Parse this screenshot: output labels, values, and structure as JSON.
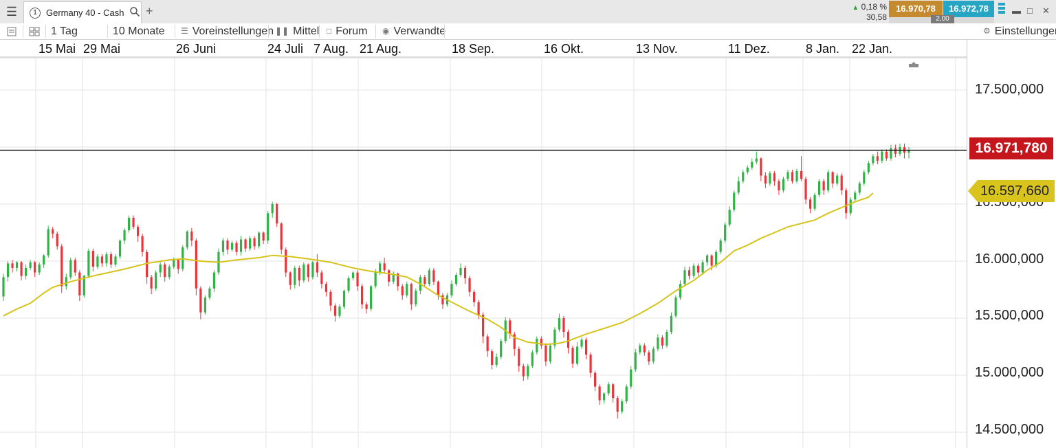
{
  "window": {
    "tab_number": "1",
    "tab_title": "Germany 40 - Cash",
    "add_tab": "+"
  },
  "quote": {
    "change_pct": "0,18 %",
    "change_pts": "30,58",
    "bid": "16.970,78",
    "ask": "16.972,78",
    "spread": "2,00",
    "colors": {
      "bid": "#c68a2e",
      "ask": "#26a6c4",
      "up": "#2e9d3a"
    }
  },
  "toolbar": {
    "interval": "1 Tag",
    "range": "10 Monate",
    "presets": "Voreinstellungen",
    "chart_type": "Mittel",
    "forum": "Forum",
    "related": "Verwandte",
    "settings": "Einstellungen"
  },
  "chart_data": {
    "type": "candlestick",
    "x_tick_labels": [
      "15 Mai",
      "29 Mai",
      "26 Juni",
      "24 Juli",
      "7 Aug.",
      "21 Aug.",
      "18 Sep.",
      "16 Okt.",
      "13 Nov.",
      "11 Dez.",
      "8 Jan.",
      "22 Jan."
    ],
    "y_tick_labels": [
      "17.500,000",
      "16.500,000",
      "16.000,000",
      "15.500,000",
      "15.000,000",
      "14.500,000"
    ],
    "y_ticks": [
      17500,
      16500,
      16000,
      15500,
      15000,
      14500
    ],
    "ylim": [
      14400,
      17850
    ],
    "grid": true,
    "current_price": 16971.78,
    "current_price_label": "16.971,780",
    "moving_average_label": "16.597,660",
    "colors": {
      "up": "#2fb344",
      "down": "#e8343a",
      "moving_average": "#d6c31a",
      "price_line": "#111111",
      "price_tag": "#c4161c",
      "ma_tag": "#d8c41c"
    },
    "moving_average": [
      [
        0,
        15520
      ],
      [
        3,
        15580
      ],
      [
        6,
        15630
      ],
      [
        9,
        15720
      ],
      [
        11,
        15770
      ],
      [
        15,
        15820
      ],
      [
        20,
        15870
      ],
      [
        27,
        15930
      ],
      [
        32,
        15980
      ],
      [
        37,
        16010
      ],
      [
        40,
        16020
      ],
      [
        44,
        16000
      ],
      [
        48,
        15990
      ],
      [
        52,
        16010
      ],
      [
        57,
        16030
      ],
      [
        60,
        16050
      ],
      [
        64,
        16040
      ],
      [
        68,
        16020
      ],
      [
        73,
        15990
      ],
      [
        78,
        15940
      ],
      [
        82,
        15910
      ],
      [
        86,
        15890
      ],
      [
        90,
        15860
      ],
      [
        93,
        15800
      ],
      [
        97,
        15700
      ],
      [
        101,
        15620
      ],
      [
        104,
        15560
      ],
      [
        108,
        15490
      ],
      [
        111,
        15420
      ],
      [
        114,
        15330
      ],
      [
        117,
        15290
      ],
      [
        121,
        15270
      ],
      [
        124,
        15280
      ],
      [
        126,
        15300
      ],
      [
        130,
        15360
      ],
      [
        134,
        15410
      ],
      [
        138,
        15460
      ],
      [
        142,
        15540
      ],
      [
        146,
        15630
      ],
      [
        150,
        15740
      ],
      [
        154,
        15830
      ],
      [
        157,
        15920
      ],
      [
        160,
        15990
      ],
      [
        163,
        16090
      ],
      [
        166,
        16140
      ],
      [
        169,
        16200
      ],
      [
        172,
        16250
      ],
      [
        175,
        16300
      ],
      [
        178,
        16330
      ],
      [
        181,
        16360
      ],
      [
        184,
        16420
      ],
      [
        187,
        16470
      ],
      [
        190,
        16520
      ],
      [
        193,
        16560
      ],
      [
        194,
        16597
      ]
    ],
    "candles": [
      [
        15690,
        15860,
        15650,
        15890
      ],
      [
        15860,
        15980,
        15820,
        16000
      ],
      [
        15980,
        15940,
        15900,
        16010
      ],
      [
        15940,
        15990,
        15910,
        16000
      ],
      [
        15990,
        15870,
        15830,
        16000
      ],
      [
        15870,
        15940,
        15840,
        15970
      ],
      [
        15940,
        15990,
        15920,
        16010
      ],
      [
        15990,
        15900,
        15860,
        16000
      ],
      [
        15900,
        15970,
        15880,
        15990
      ],
      [
        15970,
        16050,
        15940,
        16060
      ],
      [
        16050,
        16280,
        16030,
        16310
      ],
      [
        16280,
        16240,
        16200,
        16300
      ],
      [
        16240,
        16130,
        16100,
        16260
      ],
      [
        16130,
        15780,
        15720,
        16150
      ],
      [
        15780,
        15860,
        15750,
        15890
      ],
      [
        15860,
        16010,
        15840,
        16030
      ],
      [
        16010,
        15900,
        15870,
        16030
      ],
      [
        15900,
        15700,
        15650,
        15920
      ],
      [
        15700,
        15870,
        15680,
        15880
      ],
      [
        15870,
        16090,
        15850,
        16110
      ],
      [
        16090,
        15950,
        15910,
        16110
      ],
      [
        15950,
        16040,
        15930,
        16060
      ],
      [
        16040,
        15980,
        15950,
        16060
      ],
      [
        15980,
        16060,
        15950,
        16080
      ],
      [
        16060,
        15970,
        15940,
        16080
      ],
      [
        15970,
        16040,
        15950,
        16060
      ],
      [
        16040,
        16180,
        16020,
        16190
      ],
      [
        16180,
        16270,
        16150,
        16290
      ],
      [
        16270,
        16380,
        16250,
        16400
      ],
      [
        16380,
        16300,
        16280,
        16400
      ],
      [
        16300,
        16220,
        16170,
        16320
      ],
      [
        16220,
        16080,
        16040,
        16240
      ],
      [
        16080,
        15860,
        15800,
        16100
      ],
      [
        15860,
        15760,
        15710,
        15880
      ],
      [
        15760,
        15900,
        15740,
        15920
      ],
      [
        15900,
        15970,
        15860,
        15990
      ],
      [
        15970,
        15860,
        15820,
        15990
      ],
      [
        15860,
        15950,
        15840,
        15970
      ],
      [
        15950,
        16010,
        15930,
        16030
      ],
      [
        16010,
        15930,
        15890,
        16020
      ],
      [
        15930,
        16120,
        15910,
        16140
      ],
      [
        16120,
        16260,
        16100,
        16270
      ],
      [
        16260,
        16180,
        16130,
        16290
      ],
      [
        16180,
        15760,
        15700,
        16200
      ],
      [
        15760,
        15550,
        15490,
        15780
      ],
      [
        15550,
        15680,
        15530,
        15700
      ],
      [
        15680,
        15760,
        15660,
        15780
      ],
      [
        15760,
        15900,
        15730,
        15920
      ],
      [
        15900,
        16080,
        15880,
        16110
      ],
      [
        16080,
        16180,
        16050,
        16200
      ],
      [
        16180,
        16100,
        16060,
        16200
      ],
      [
        16100,
        16160,
        16080,
        16180
      ],
      [
        16160,
        16080,
        16050,
        16180
      ],
      [
        16080,
        16190,
        16050,
        16220
      ],
      [
        16190,
        16110,
        16080,
        16200
      ],
      [
        16110,
        16200,
        16090,
        16220
      ],
      [
        16200,
        16130,
        16100,
        16220
      ],
      [
        16130,
        16250,
        16110,
        16260
      ],
      [
        16250,
        16180,
        16150,
        16260
      ],
      [
        16180,
        16420,
        16150,
        16440
      ],
      [
        16420,
        16500,
        16380,
        16520
      ],
      [
        16500,
        16330,
        16300,
        16510
      ],
      [
        16330,
        16100,
        16060,
        16340
      ],
      [
        16100,
        15900,
        15860,
        16120
      ],
      [
        15900,
        15790,
        15750,
        15910
      ],
      [
        15790,
        15940,
        15760,
        15960
      ],
      [
        15940,
        15830,
        15780,
        15960
      ],
      [
        15830,
        15970,
        15810,
        15990
      ],
      [
        15970,
        15860,
        15820,
        15980
      ],
      [
        15860,
        15990,
        15840,
        16000
      ],
      [
        15990,
        15900,
        15860,
        16060
      ],
      [
        15900,
        15800,
        15760,
        15920
      ],
      [
        15800,
        15730,
        15690,
        15820
      ],
      [
        15730,
        15610,
        15560,
        15750
      ],
      [
        15610,
        15520,
        15470,
        15630
      ],
      [
        15520,
        15600,
        15500,
        15620
      ],
      [
        15600,
        15740,
        15580,
        15750
      ],
      [
        15740,
        15850,
        15720,
        15870
      ],
      [
        15850,
        15900,
        15830,
        15910
      ],
      [
        15900,
        15780,
        15740,
        15920
      ],
      [
        15780,
        15620,
        15580,
        15800
      ],
      [
        15620,
        15580,
        15540,
        15640
      ],
      [
        15580,
        15780,
        15560,
        15790
      ],
      [
        15780,
        15900,
        15760,
        15930
      ],
      [
        15900,
        15980,
        15880,
        16000
      ],
      [
        15980,
        15920,
        15890,
        16030
      ],
      [
        15920,
        15820,
        15780,
        15930
      ],
      [
        15820,
        15890,
        15800,
        15910
      ],
      [
        15890,
        15780,
        15740,
        15900
      ],
      [
        15780,
        15700,
        15660,
        15800
      ],
      [
        15700,
        15800,
        15680,
        15820
      ],
      [
        15800,
        15620,
        15570,
        15810
      ],
      [
        15620,
        15740,
        15600,
        15760
      ],
      [
        15740,
        15860,
        15710,
        15880
      ],
      [
        15860,
        15800,
        15770,
        15880
      ],
      [
        15800,
        15920,
        15780,
        15940
      ],
      [
        15920,
        15820,
        15790,
        15940
      ],
      [
        15820,
        15700,
        15660,
        15830
      ],
      [
        15700,
        15620,
        15580,
        15720
      ],
      [
        15620,
        15700,
        15600,
        15720
      ],
      [
        15700,
        15800,
        15680,
        15830
      ],
      [
        15800,
        15880,
        15780,
        15900
      ],
      [
        15880,
        15940,
        15860,
        15980
      ],
      [
        15940,
        15850,
        15800,
        15960
      ],
      [
        15850,
        15730,
        15690,
        15870
      ],
      [
        15730,
        15640,
        15600,
        15750
      ],
      [
        15640,
        15530,
        15490,
        15660
      ],
      [
        15530,
        15340,
        15280,
        15550
      ],
      [
        15340,
        15210,
        15160,
        15360
      ],
      [
        15210,
        15090,
        15050,
        15230
      ],
      [
        15090,
        15160,
        15070,
        15190
      ],
      [
        15160,
        15300,
        15140,
        15320
      ],
      [
        15300,
        15480,
        15280,
        15510
      ],
      [
        15480,
        15360,
        15320,
        15500
      ],
      [
        15360,
        15230,
        15170,
        15380
      ],
      [
        15230,
        15080,
        15030,
        15250
      ],
      [
        15080,
        14990,
        14950,
        15100
      ],
      [
        14990,
        15080,
        14960,
        15100
      ],
      [
        15080,
        15200,
        15060,
        15220
      ],
      [
        15200,
        15320,
        15180,
        15340
      ],
      [
        15320,
        15260,
        15230,
        15340
      ],
      [
        15260,
        15120,
        15080,
        15280
      ],
      [
        15120,
        15260,
        15100,
        15280
      ],
      [
        15260,
        15400,
        15230,
        15420
      ],
      [
        15400,
        15500,
        15380,
        15540
      ],
      [
        15500,
        15380,
        15330,
        15520
      ],
      [
        15380,
        15240,
        15190,
        15400
      ],
      [
        15240,
        15100,
        15060,
        15260
      ],
      [
        15100,
        15250,
        15080,
        15290
      ],
      [
        15250,
        15310,
        15230,
        15330
      ],
      [
        15310,
        15180,
        15140,
        15330
      ],
      [
        15180,
        15020,
        14980,
        15200
      ],
      [
        15020,
        14900,
        14860,
        15040
      ],
      [
        14900,
        14780,
        14740,
        14920
      ],
      [
        14780,
        14840,
        14750,
        14850
      ],
      [
        14840,
        14920,
        14820,
        14940
      ],
      [
        14920,
        14800,
        14760,
        14930
      ],
      [
        14800,
        14680,
        14620,
        14820
      ],
      [
        14680,
        14770,
        14660,
        14790
      ],
      [
        14770,
        14900,
        14750,
        14920
      ],
      [
        14900,
        15050,
        14880,
        15080
      ],
      [
        15050,
        15200,
        15030,
        15230
      ],
      [
        15200,
        15260,
        15180,
        15280
      ],
      [
        15260,
        15200,
        15170,
        15280
      ],
      [
        15200,
        15120,
        15090,
        15220
      ],
      [
        15120,
        15230,
        15100,
        15250
      ],
      [
        15230,
        15330,
        15210,
        15360
      ],
      [
        15330,
        15260,
        15230,
        15350
      ],
      [
        15260,
        15380,
        15240,
        15400
      ],
      [
        15380,
        15520,
        15360,
        15550
      ],
      [
        15520,
        15680,
        15500,
        15700
      ],
      [
        15680,
        15800,
        15660,
        15830
      ],
      [
        15800,
        15920,
        15780,
        15950
      ],
      [
        15920,
        15870,
        15840,
        15950
      ],
      [
        15870,
        15960,
        15850,
        15980
      ],
      [
        15960,
        15900,
        15870,
        15980
      ],
      [
        15900,
        15990,
        15880,
        16010
      ],
      [
        15990,
        16050,
        15960,
        16060
      ],
      [
        16050,
        15960,
        15920,
        16060
      ],
      [
        15960,
        16080,
        15940,
        16100
      ],
      [
        16080,
        16180,
        16060,
        16200
      ],
      [
        16180,
        16320,
        16160,
        16340
      ],
      [
        16320,
        16450,
        16300,
        16480
      ],
      [
        16450,
        16600,
        16430,
        16620
      ],
      [
        16600,
        16700,
        16580,
        16740
      ],
      [
        16700,
        16780,
        16680,
        16800
      ],
      [
        16780,
        16820,
        16760,
        16840
      ],
      [
        16820,
        16870,
        16800,
        16900
      ],
      [
        16870,
        16900,
        16850,
        16960
      ],
      [
        16900,
        16750,
        16700,
        16910
      ],
      [
        16750,
        16680,
        16640,
        16780
      ],
      [
        16680,
        16770,
        16660,
        16790
      ],
      [
        16770,
        16700,
        16660,
        16790
      ],
      [
        16700,
        16620,
        16580,
        16720
      ],
      [
        16620,
        16720,
        16600,
        16740
      ],
      [
        16720,
        16780,
        16700,
        16800
      ],
      [
        16780,
        16700,
        16680,
        16800
      ],
      [
        16700,
        16790,
        16680,
        16810
      ],
      [
        16790,
        16720,
        16700,
        16920
      ],
      [
        16720,
        16540,
        16500,
        16740
      ],
      [
        16540,
        16460,
        16420,
        16560
      ],
      [
        16460,
        16580,
        16440,
        16600
      ],
      [
        16580,
        16700,
        16560,
        16720
      ],
      [
        16700,
        16620,
        16580,
        16720
      ],
      [
        16620,
        16780,
        16600,
        16800
      ],
      [
        16780,
        16680,
        16640,
        16790
      ],
      [
        16680,
        16750,
        16660,
        16770
      ],
      [
        16750,
        16620,
        16580,
        16770
      ],
      [
        16620,
        16420,
        16370,
        16640
      ],
      [
        16420,
        16540,
        16400,
        16560
      ],
      [
        16540,
        16600,
        16520,
        16620
      ],
      [
        16600,
        16680,
        16580,
        16700
      ],
      [
        16680,
        16780,
        16660,
        16800
      ],
      [
        16780,
        16860,
        16760,
        16880
      ],
      [
        16860,
        16920,
        16840,
        16940
      ],
      [
        16920,
        16880,
        16850,
        16960
      ],
      [
        16880,
        16960,
        16860,
        16980
      ],
      [
        16960,
        16900,
        16880,
        16980
      ],
      [
        16900,
        16990,
        16880,
        17020
      ],
      [
        16990,
        16940,
        16910,
        17020
      ],
      [
        16940,
        17000,
        16920,
        17030
      ],
      [
        17000,
        16950,
        16900,
        17030
      ],
      [
        16950,
        16972,
        16900,
        17000
      ]
    ]
  }
}
